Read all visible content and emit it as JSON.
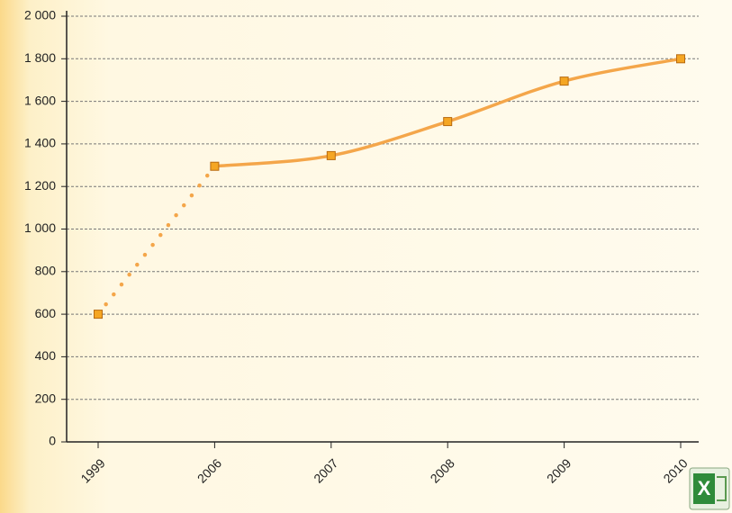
{
  "chart_data": {
    "type": "line",
    "categories": [
      "1999",
      "2006",
      "2007",
      "2008",
      "2009",
      "2010"
    ],
    "series": [
      {
        "color": "#f4a64a",
        "values": [
          600,
          1295,
          1345,
          1505,
          1695,
          1800
        ]
      }
    ],
    "dotted_segments": [
      0
    ],
    "ylim": [
      0,
      2000
    ],
    "yticks": [
      {
        "value": 0,
        "label": "0"
      },
      {
        "value": 200,
        "label": "200"
      },
      {
        "value": 400,
        "label": "400"
      },
      {
        "value": 600,
        "label": "600"
      },
      {
        "value": 800,
        "label": "800"
      },
      {
        "value": 1000,
        "label": "1 000"
      },
      {
        "value": 1200,
        "label": "1 200"
      },
      {
        "value": 1400,
        "label": "1 400"
      },
      {
        "value": 1600,
        "label": "1 600"
      },
      {
        "value": 1800,
        "label": "1 800"
      },
      {
        "value": 2000,
        "label": "2 000"
      }
    ],
    "grid": true
  }
}
